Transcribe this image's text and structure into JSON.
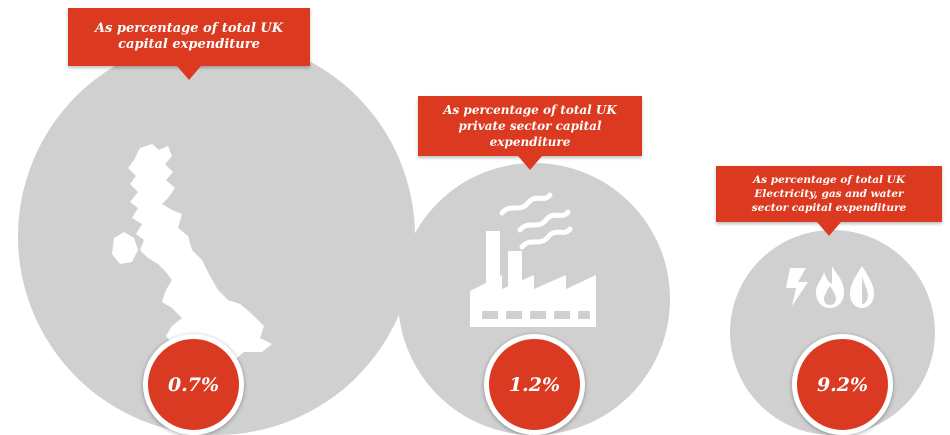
{
  "chart_data": {
    "type": "infographic",
    "items": [
      {
        "label": "As percentage of total UK\ncapital expenditure",
        "value": 0.7,
        "display": "0.7%",
        "icon": "uk-map-icon"
      },
      {
        "label": "As percentage of total UK\nprivate sector capital\nexpenditure",
        "value": 1.2,
        "display": "1.2%",
        "icon": "factory-icon"
      },
      {
        "label": "As percentage of total UK\nElectricity, gas and water\nsector capital expenditure",
        "value": 9.2,
        "display": "9.2%",
        "icon": "utilities-icon"
      }
    ]
  },
  "colors": {
    "accent": "#db3a20",
    "circle": "#d1d0d0",
    "icon": "#ffffff"
  }
}
